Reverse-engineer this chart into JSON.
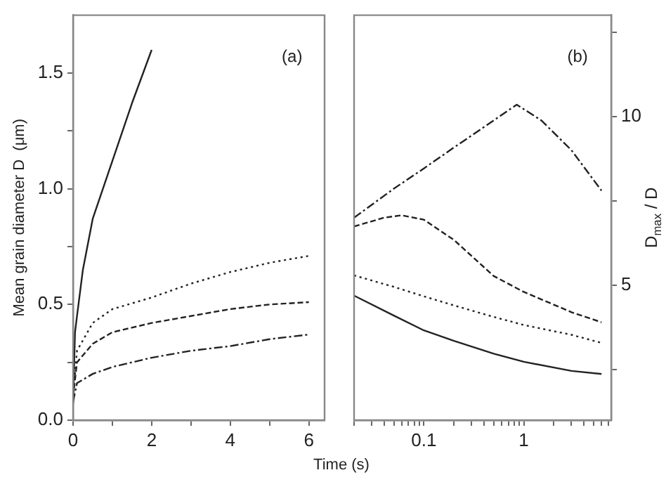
{
  "chart_data": [
    {
      "type": "line",
      "ylabel": "Mean grain diameter D  (μm)",
      "xlabel": "Time  (s)",
      "annotations": [
        "(a)"
      ],
      "xlim": [
        0,
        6.4
      ],
      "ylim": [
        0,
        1.75
      ],
      "xticks": [
        0,
        {
          "value": 1,
          "label": null
        },
        2,
        {
          "value": 3,
          "label": null
        },
        4,
        {
          "value": 5,
          "label": null
        },
        6
      ],
      "yticks": [
        {
          "value": 0,
          "label": "0.0"
        },
        {
          "value": 0.25,
          "label": null
        },
        0.5,
        {
          "value": 0.75,
          "label": null
        },
        {
          "value": 1,
          "label": "1.0"
        },
        {
          "value": 1.25,
          "label": null
        },
        1.5
      ],
      "series": [
        {
          "color": "#222222",
          "line_style": "solid",
          "x": [
            0,
            0.05,
            0.1,
            0.25,
            0.5,
            1,
            1.5,
            2
          ],
          "values": [
            0.07,
            0.38,
            0.45,
            0.65,
            0.87,
            1.12,
            1.37,
            1.6
          ]
        },
        {
          "color": "#222222",
          "line_style": "dotted",
          "x": [
            0,
            0.1,
            0.5,
            1,
            2,
            3,
            4,
            5,
            6
          ],
          "values": [
            0.1,
            0.3,
            0.42,
            0.48,
            0.53,
            0.59,
            0.64,
            0.68,
            0.71
          ]
        },
        {
          "color": "#222222",
          "line_style": "dashed",
          "x": [
            0,
            0.1,
            0.5,
            1,
            2,
            3,
            4,
            5,
            6
          ],
          "values": [
            0.1,
            0.25,
            0.33,
            0.38,
            0.42,
            0.45,
            0.48,
            0.5,
            0.51
          ]
        },
        {
          "color": "#222222",
          "line_style": "dashdot",
          "x": [
            0,
            0.1,
            0.5,
            1,
            2,
            3,
            4,
            5,
            6
          ],
          "values": [
            0.08,
            0.16,
            0.2,
            0.23,
            0.27,
            0.3,
            0.32,
            0.35,
            0.37
          ]
        }
      ]
    },
    {
      "type": "line",
      "y2label": "D$_{max}$ / D",
      "annotations": [
        "(b)"
      ],
      "log": "x",
      "xlim": [
        0.02,
        7.5
      ],
      "y2lim": [
        1,
        13
      ],
      "xticks": [
        {
          "value": 0.02,
          "label": null
        },
        {
          "value": 0.03,
          "label": null
        },
        {
          "value": 0.04,
          "label": null
        },
        {
          "value": 0.05,
          "label": null
        },
        {
          "value": 0.06,
          "label": null
        },
        {
          "value": 0.07,
          "label": null
        },
        {
          "value": 0.08,
          "label": null
        },
        {
          "value": 0.09,
          "label": null
        },
        0.1,
        {
          "value": 0.2,
          "label": null
        },
        {
          "value": 0.3,
          "label": null
        },
        {
          "value": 0.4,
          "label": null
        },
        {
          "value": 0.5,
          "label": null
        },
        {
          "value": 0.6,
          "label": null
        },
        {
          "value": 0.7,
          "label": null
        },
        {
          "value": 0.8,
          "label": null
        },
        {
          "value": 0.9,
          "label": null
        },
        1,
        {
          "value": 2,
          "label": null
        },
        {
          "value": 3,
          "label": null
        },
        {
          "value": 4,
          "label": null
        },
        {
          "value": 5,
          "label": null
        },
        {
          "value": 6,
          "label": null
        },
        {
          "value": 7,
          "label": null
        }
      ],
      "y2ticks": [
        {
          "value": 2.5,
          "label": null
        },
        5,
        {
          "value": 7.5,
          "label": null
        },
        10,
        {
          "value": 12.5,
          "label": null
        }
      ],
      "series": [
        {
          "color": "#222222",
          "line_style": "solid",
          "axis": "y2",
          "x": [
            0.02,
            0.05,
            0.1,
            0.2,
            0.5,
            1,
            3,
            6
          ],
          "values": [
            4.69,
            4.1,
            3.66,
            3.35,
            2.97,
            2.73,
            2.46,
            2.37
          ]
        },
        {
          "color": "#222222",
          "line_style": "dotted",
          "axis": "y2",
          "x": [
            0.02,
            0.05,
            0.1,
            0.2,
            0.5,
            1,
            3,
            6
          ],
          "values": [
            5.29,
            4.95,
            4.67,
            4.4,
            4.06,
            3.82,
            3.53,
            3.29
          ]
        },
        {
          "color": "#222222",
          "line_style": "dashed",
          "axis": "y2",
          "x": [
            0.02,
            0.04,
            0.06,
            0.1,
            0.2,
            0.5,
            1,
            3,
            6
          ],
          "values": [
            6.74,
            7.0,
            7.07,
            6.94,
            6.34,
            5.27,
            4.8,
            4.2,
            3.9
          ]
        },
        {
          "color": "#222222",
          "line_style": "dashdot",
          "axis": "y2",
          "x": [
            0.02,
            0.05,
            0.1,
            0.2,
            0.5,
            0.85,
            1.5,
            3,
            6
          ],
          "values": [
            7.0,
            7.86,
            8.46,
            9.08,
            9.88,
            10.35,
            9.88,
            9.0,
            7.8
          ]
        }
      ]
    }
  ]
}
